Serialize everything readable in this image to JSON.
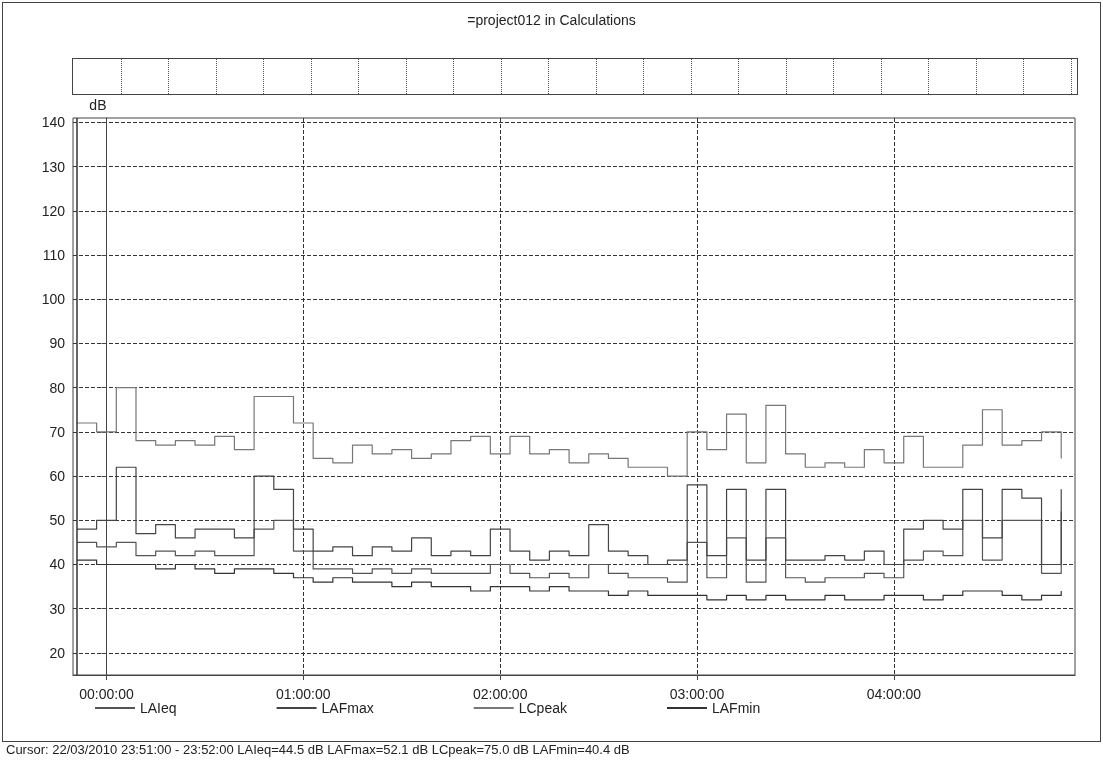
{
  "chart_data": {
    "type": "step",
    "title": "=project012 in Calculations",
    "ylabel": "dB",
    "annotations": [
      "Cursor: 22/03/2010 23:51:00 - 23:52:00  LAIeq=44.5 dB  LAFmax=52.1 dB  LCpeak=75.0 dB  LAFmin=40.4 dB"
    ],
    "x": [
      -0.15,
      -0.05,
      0.05,
      0.15,
      0.25,
      0.35,
      0.45,
      0.55,
      0.65,
      0.75,
      0.85,
      0.95,
      1.05,
      1.15,
      1.25,
      1.35,
      1.45,
      1.55,
      1.65,
      1.75,
      1.85,
      1.95,
      2.05,
      2.15,
      2.25,
      2.35,
      2.45,
      2.55,
      2.65,
      2.75,
      2.85,
      2.95,
      3.05,
      3.15,
      3.25,
      3.35,
      3.45,
      3.55,
      3.65,
      3.75,
      3.85,
      3.95,
      4.05,
      4.15,
      4.25,
      4.35,
      4.45,
      4.55,
      4.65,
      4.75,
      4.85
    ],
    "series": [
      {
        "name": "LAIeq",
        "color": "#555555",
        "values": [
          45,
          44,
          45,
          42,
          43,
          42,
          43,
          42,
          42,
          48,
          50,
          43,
          39,
          39,
          38,
          39,
          38,
          39,
          38,
          38,
          38,
          40,
          38,
          37,
          38,
          37,
          40,
          38,
          37,
          37,
          36,
          45,
          37,
          46,
          36,
          46,
          37,
          36,
          37,
          37,
          38,
          37,
          41,
          43,
          42,
          50,
          41,
          50,
          50,
          38,
          52
        ]
      },
      {
        "name": "LAFmax",
        "color": "#444444",
        "values": [
          48,
          50,
          62,
          47,
          49,
          46,
          48,
          48,
          46,
          60,
          57,
          48,
          43,
          44,
          42,
          44,
          43,
          46,
          42,
          43,
          42,
          48,
          43,
          41,
          43,
          42,
          49,
          43,
          42,
          40,
          41,
          58,
          42,
          57,
          41,
          57,
          41,
          41,
          42,
          41,
          43,
          40,
          48,
          50,
          48,
          57,
          46,
          57,
          55,
          40,
          57
        ]
      },
      {
        "name": "LCpeak",
        "color": "#777777",
        "values": [
          72,
          70,
          80,
          68,
          67,
          68,
          67,
          69,
          66,
          78,
          78,
          72,
          64,
          63,
          67,
          65,
          66,
          64,
          65,
          68,
          69,
          65,
          69,
          65,
          66,
          63,
          65,
          64,
          62,
          62,
          60,
          70,
          66,
          74,
          63,
          76,
          65,
          62,
          63,
          62,
          66,
          63,
          69,
          62,
          62,
          67,
          75,
          67,
          68,
          70,
          64
        ]
      },
      {
        "name": "LAFmin",
        "color": "#333333",
        "values": [
          41,
          40,
          40,
          40,
          39,
          40,
          39,
          38,
          39,
          39,
          38,
          37,
          36,
          37,
          36,
          36,
          35,
          36,
          35,
          35,
          34,
          35,
          35,
          34,
          35,
          34,
          34,
          33,
          34,
          33,
          33,
          33,
          32,
          33,
          32,
          33,
          32,
          32,
          33,
          32,
          32,
          33,
          33,
          32,
          33,
          34,
          34,
          33,
          32,
          33,
          34
        ]
      }
    ],
    "xlim": [
      -0.17,
      4.92
    ],
    "xticks": [
      {
        "value": 0,
        "label": "00:00:00"
      },
      {
        "value": 1,
        "label": "01:00:00"
      },
      {
        "value": 2,
        "label": "02:00:00"
      },
      {
        "value": 3,
        "label": "03:00:00"
      },
      {
        "value": 4,
        "label": "04:00:00"
      }
    ],
    "ylim": [
      15,
      141
    ],
    "yticks": [
      20,
      30,
      40,
      50,
      60,
      70,
      80,
      90,
      100,
      110,
      120,
      130,
      140
    ],
    "ref_lines": [
      {
        "axis": "x",
        "value": -0.15,
        "color": "#333333"
      }
    ],
    "grid": true,
    "legend": "bottom",
    "marker": "none",
    "line_style": "solid"
  }
}
